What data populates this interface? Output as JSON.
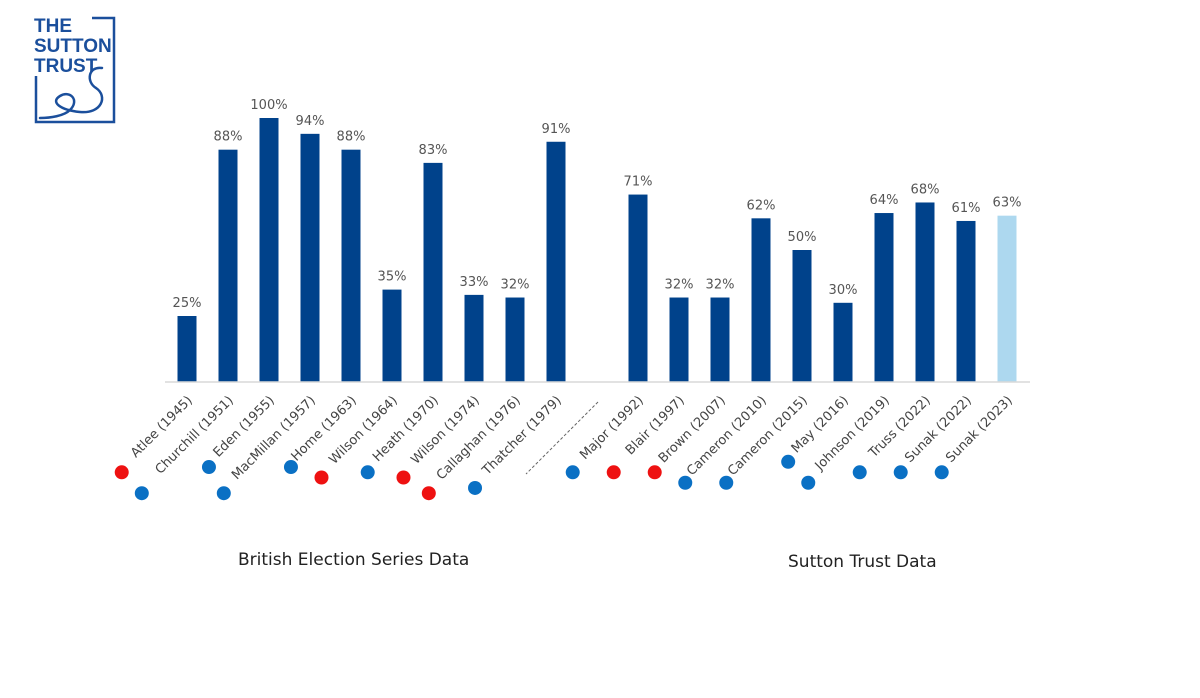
{
  "logo": {
    "text_line1": "THE",
    "text_line2": "SUTTON",
    "text_line3": "TRUST",
    "color": "#1b4f9c",
    "icon": "sutton-trust-logo-icon"
  },
  "chart_data": {
    "type": "bar",
    "title": "",
    "xlabel": "",
    "ylabel": "",
    "ylim": [
      0,
      100
    ],
    "grid": false,
    "legend": "none",
    "categories": [
      "Atlee (1945)",
      "Churchill (1951)",
      "Eden (1955)",
      "MacMillan (1957)",
      "Home (1963)",
      "Wilson (1964)",
      "Heath (1970)",
      "Wilson (1974)",
      "Callaghan (1976)",
      "Thatcher (1979)",
      "Major (1992)",
      "Blair (1997)",
      "Brown (2007)",
      "Cameron (2010)",
      "Cameron (2015)",
      "May (2016)",
      "Johnson (2019)",
      "Truss (2022)",
      "Sunak (2022)",
      "Sunak (2023)"
    ],
    "values": [
      25,
      88,
      100,
      94,
      88,
      35,
      83,
      33,
      32,
      91,
      71,
      32,
      32,
      62,
      50,
      30,
      64,
      68,
      61,
      63
    ],
    "value_labels": [
      "25%",
      "88%",
      "100%",
      "94%",
      "88%",
      "35%",
      "83%",
      "33%",
      "32%",
      "91%",
      "71%",
      "32%",
      "32%",
      "62%",
      "50%",
      "30%",
      "64%",
      "68%",
      "61%",
      "63%"
    ],
    "party": [
      "labour",
      "conservative",
      "conservative",
      "conservative",
      "conservative",
      "labour",
      "conservative",
      "labour",
      "labour",
      "conservative",
      "conservative",
      "labour",
      "labour",
      "conservative",
      "conservative",
      "conservative",
      "conservative",
      "conservative",
      "conservative",
      "conservative"
    ],
    "highlight": [
      false,
      false,
      false,
      false,
      false,
      false,
      false,
      false,
      false,
      false,
      false,
      false,
      false,
      false,
      false,
      false,
      false,
      false,
      false,
      true
    ],
    "groups": [
      {
        "label": "British Election Series Data",
        "start": 0,
        "end": 9
      },
      {
        "label": "Sutton Trust Data",
        "start": 10,
        "end": 19
      }
    ],
    "colors": {
      "bar": "#00428b",
      "bar_highlight": "#add8ef",
      "labour_dot": "#ee1111",
      "conservative_dot": "#0a70c4",
      "axis": "#d9d9d9",
      "divider": "#666666"
    }
  }
}
